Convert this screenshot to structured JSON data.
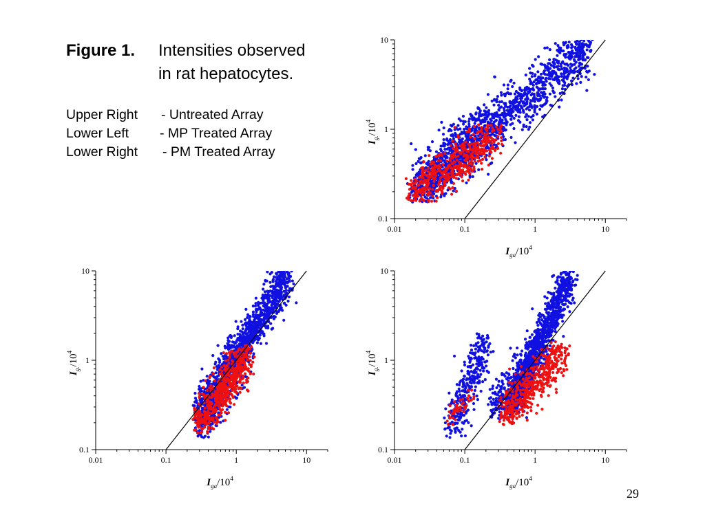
{
  "caption": {
    "label": "Figure 1.",
    "text_line1": "Intensities observed",
    "text_line2": "in rat hepatocytes."
  },
  "legend": [
    {
      "position": "Upper Right",
      "desc": "- Untreated Array"
    },
    {
      "position": "Lower Left",
      "desc": "- MP Treated Array"
    },
    {
      "position": "Lower Right",
      "desc": "- PM Treated Array"
    }
  ],
  "page_number": "29",
  "colors": {
    "blue_series": "#1010e0",
    "red_series": "#ee1111",
    "axis": "#000000"
  },
  "chart_data": [
    {
      "type": "scatter",
      "panel": "upper-right",
      "xlabel": {
        "italic": "I",
        "sub": "ga",
        "rest": "/10",
        "sup": "4"
      },
      "ylabel": {
        "italic": "I",
        "sub": "g.",
        "rest": "/10",
        "sup": "4"
      },
      "x_scale": "log",
      "y_scale": "log",
      "xlim": [
        0.01,
        20
      ],
      "ylim": [
        0.1,
        10
      ],
      "x_ticks": [
        "0.01",
        "0.1",
        "1",
        "10"
      ],
      "y_ticks": [
        "0.1",
        "1",
        "10"
      ],
      "reference_line": "y = x",
      "series": [
        {
          "color": "blue",
          "clusters": [
            {
              "x": [
                0.018,
                5.8
              ],
              "y": [
                0.18,
                8.8
              ],
              "n": 1300,
              "spread": 0.14
            },
            {
              "x": [
                0.02,
                0.25
              ],
              "y": [
                0.2,
                1.4
              ],
              "n": 500,
              "spread": 0.16
            }
          ]
        },
        {
          "color": "red",
          "clusters": [
            {
              "x": [
                0.017,
                0.3
              ],
              "y": [
                0.18,
                0.9
              ],
              "n": 520,
              "spread": 0.12
            }
          ]
        }
      ]
    },
    {
      "type": "scatter",
      "panel": "lower-left",
      "xlabel": {
        "italic": "I",
        "sub": "ga",
        "rest": "/10",
        "sup": "4"
      },
      "ylabel": {
        "italic": "I",
        "sub": "g.",
        "rest": "/10",
        "sup": "4"
      },
      "x_scale": "log",
      "y_scale": "log",
      "xlim": [
        0.01,
        20
      ],
      "ylim": [
        0.1,
        10
      ],
      "x_ticks": [
        "0.01",
        "0.1",
        "1",
        "10"
      ],
      "y_ticks": [
        "0.1",
        "1",
        "10"
      ],
      "reference_line": "y = x",
      "series": [
        {
          "color": "blue",
          "clusters": [
            {
              "x": [
                0.28,
                5.5
              ],
              "y": [
                0.22,
                9.0
              ],
              "n": 1300,
              "spread": 0.11
            },
            {
              "x": [
                0.3,
                1.4
              ],
              "y": [
                0.16,
                1.5
              ],
              "n": 300,
              "spread": 0.14
            }
          ]
        },
        {
          "color": "red",
          "clusters": [
            {
              "x": [
                0.28,
                1.5
              ],
              "y": [
                0.18,
                1.2
              ],
              "n": 600,
              "spread": 0.12
            }
          ]
        }
      ]
    },
    {
      "type": "scatter",
      "panel": "lower-right",
      "xlabel": {
        "italic": "I",
        "sub": "ga",
        "rest": "/10",
        "sup": "4"
      },
      "ylabel": {
        "italic": "I",
        "sub": "g.",
        "rest": "/10",
        "sup": "4"
      },
      "x_scale": "log",
      "y_scale": "log",
      "xlim": [
        0.01,
        20
      ],
      "ylim": [
        0.1,
        10
      ],
      "x_ticks": [
        "0.01",
        "0.1",
        "1",
        "10"
      ],
      "y_ticks": [
        "0.1",
        "1",
        "10"
      ],
      "reference_line": "y = x",
      "series": [
        {
          "color": "blue",
          "clusters": [
            {
              "x": [
                0.45,
                3.2
              ],
              "y": [
                0.3,
                9.0
              ],
              "n": 1100,
              "spread": 0.1
            },
            {
              "x": [
                0.06,
                0.2
              ],
              "y": [
                0.16,
                1.6
              ],
              "n": 350,
              "spread": 0.12
            },
            {
              "x": [
                0.25,
                1.2
              ],
              "y": [
                0.25,
                1.4
              ],
              "n": 400,
              "spread": 0.13
            }
          ]
        },
        {
          "color": "red",
          "clusters": [
            {
              "x": [
                0.35,
                2.5
              ],
              "y": [
                0.22,
                1.3
              ],
              "n": 520,
              "spread": 0.12
            },
            {
              "x": [
                0.06,
                0.12
              ],
              "y": [
                0.22,
                0.4
              ],
              "n": 50,
              "spread": 0.05
            }
          ]
        }
      ]
    }
  ]
}
